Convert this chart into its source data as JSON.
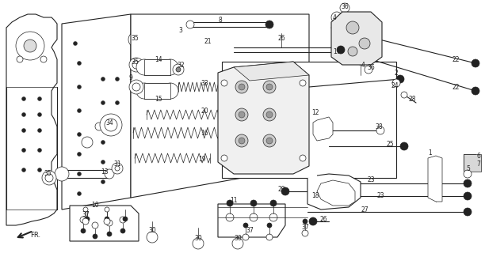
{
  "bg_color": "#ffffff",
  "line_color": "#222222",
  "fig_width": 6.12,
  "fig_height": 3.2,
  "dpi": 100
}
